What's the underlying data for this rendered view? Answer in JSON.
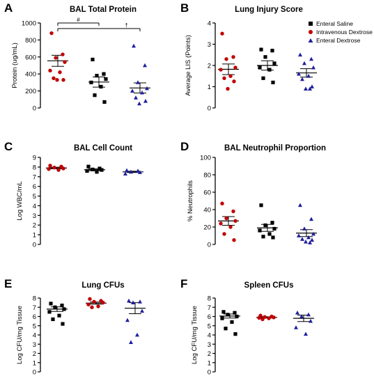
{
  "colors": {
    "enteral_saline": "#000000",
    "intravenous_dextrose": "#c00000",
    "enteral_dextrose": "#1f1f9e"
  },
  "legend": {
    "placement": "top-right of panel B",
    "entries": [
      {
        "label": "Enteral Saline",
        "marker": "square",
        "color": "#000000"
      },
      {
        "label": "Intravenous Dextrose",
        "marker": "circle",
        "color": "#c00000"
      },
      {
        "label": "Enteral Dextrose",
        "marker": "triangle",
        "color": "#1f1f9e"
      }
    ]
  },
  "chart_data": [
    {
      "panel": "A",
      "type": "scatter",
      "title": "BAL Total  Protein",
      "ylabel": "Protein (ug/mL)",
      "ylim": [
        0,
        1000
      ],
      "yticks": [
        "0",
        "200",
        "400",
        "600",
        "800",
        "1000"
      ],
      "annotations": [
        "#",
        "†"
      ],
      "series": [
        {
          "group": "Intravenous Dextrose",
          "marker": "circle",
          "color": "#c00000",
          "mean": 555,
          "sem": 65,
          "values": [
            880,
            630,
            590,
            540,
            440,
            420,
            350,
            330,
            330
          ]
        },
        {
          "group": "Enteral Saline",
          "marker": "square",
          "color": "#000000",
          "mean": 305,
          "sem": 60,
          "values": [
            570,
            400,
            380,
            340,
            300,
            250,
            150,
            70
          ]
        },
        {
          "group": "Enteral Dextrose",
          "marker": "triangle",
          "color": "#1f1f9e",
          "mean": 235,
          "sem": 60,
          "values": [
            730,
            500,
            300,
            230,
            200,
            180,
            120,
            80,
            50
          ]
        }
      ]
    },
    {
      "panel": "B",
      "type": "scatter",
      "title": "Lung Injury Score",
      "ylabel": "Average LIS (Points)",
      "ylim": [
        0,
        4
      ],
      "yticks": [
        "0",
        "1",
        "2",
        "3",
        "4"
      ],
      "series": [
        {
          "group": "Intravenous Dextrose",
          "marker": "circle",
          "color": "#c00000",
          "mean": 1.82,
          "sem": 0.25,
          "values": [
            3.5,
            2.4,
            2.3,
            1.9,
            1.8,
            1.5,
            1.4,
            1.25,
            0.9
          ]
        },
        {
          "group": "Enteral Saline",
          "marker": "square",
          "color": "#000000",
          "mean": 2.0,
          "sem": 0.22,
          "values": [
            2.75,
            2.7,
            2.4,
            2.1,
            1.9,
            1.8,
            1.4,
            1.2
          ]
        },
        {
          "group": "Enteral Dextrose",
          "marker": "triangle",
          "color": "#1f1f9e",
          "mean": 1.65,
          "sem": 0.2,
          "values": [
            2.5,
            2.3,
            2.1,
            1.9,
            1.6,
            1.5,
            1.35,
            1.0,
            0.9,
            0.9
          ]
        }
      ]
    },
    {
      "panel": "C",
      "type": "scatter",
      "title": "BAL Cell Count",
      "ylabel": "Log WBC/mL",
      "ylim": [
        0,
        9
      ],
      "yticks": [
        "0",
        "1",
        "2",
        "3",
        "4",
        "5",
        "6",
        "7",
        "8",
        "9"
      ],
      "series": [
        {
          "group": "Intravenous Dextrose",
          "marker": "circle",
          "color": "#c00000",
          "mean": 7.9,
          "sem": 0.08,
          "values": [
            8.15,
            8.05,
            7.95,
            7.85,
            7.8,
            7.7
          ]
        },
        {
          "group": "Enteral Saline",
          "marker": "square",
          "color": "#000000",
          "mean": 7.72,
          "sem": 0.1,
          "values": [
            8.05,
            7.85,
            7.75,
            7.7,
            7.6,
            7.5
          ]
        },
        {
          "group": "Enteral Dextrose",
          "marker": "triangle",
          "color": "#1f1f9e",
          "mean": 7.5,
          "sem": 0.07,
          "values": [
            7.65,
            7.6,
            7.5,
            7.45,
            7.3
          ]
        }
      ]
    },
    {
      "panel": "D",
      "type": "scatter",
      "title": "BAL Neutrophil Proportion",
      "ylabel": "% Neutrophils",
      "ylim": [
        0,
        100
      ],
      "yticks": [
        "0",
        "20",
        "40",
        "60",
        "80",
        "100"
      ],
      "series": [
        {
          "group": "Intravenous Dextrose",
          "marker": "circle",
          "color": "#c00000",
          "mean": 27,
          "sem": 5,
          "values": [
            47,
            38,
            30,
            27,
            24,
            20,
            12,
            5
          ]
        },
        {
          "group": "Enteral Saline",
          "marker": "square",
          "color": "#000000",
          "mean": 19,
          "sem": 4,
          "values": [
            45,
            25,
            22,
            18,
            16,
            12,
            9,
            8
          ]
        },
        {
          "group": "Enteral Dextrose",
          "marker": "triangle",
          "color": "#1f1f9e",
          "mean": 13,
          "sem": 4,
          "values": [
            45,
            29,
            18,
            12,
            10,
            8,
            6,
            5,
            3,
            2
          ]
        }
      ]
    },
    {
      "panel": "E",
      "type": "scatter",
      "title": "Lung CFUs",
      "ylabel": "Log CFU/mg Tissue",
      "ylim": [
        0,
        8
      ],
      "yticks": [
        "0",
        "1",
        "2",
        "3",
        "4",
        "5",
        "6",
        "7",
        "8"
      ],
      "series": [
        {
          "group": "Enteral Saline",
          "marker": "square",
          "color": "#000000",
          "mean": 6.8,
          "sem": 0.25,
          "values": [
            7.4,
            7.2,
            7.0,
            6.8,
            6.5,
            6.1,
            5.7,
            5.2
          ]
        },
        {
          "group": "Intravenous Dextrose",
          "marker": "circle",
          "color": "#c00000",
          "mean": 7.45,
          "sem": 0.12,
          "values": [
            7.9,
            7.7,
            7.6,
            7.5,
            7.3,
            7.1,
            7.0
          ]
        },
        {
          "group": "Enteral Dextrose",
          "marker": "triangle",
          "color": "#1f1f9e",
          "mean": 6.9,
          "sem": 0.6,
          "values": [
            7.7,
            7.6,
            7.5,
            6.6,
            5.6,
            4.0,
            3.2
          ]
        }
      ]
    },
    {
      "panel": "F",
      "type": "scatter",
      "title": "Spleen CFUs",
      "ylabel": "Log CFU/mg Tissue",
      "ylim": [
        0,
        8
      ],
      "yticks": [
        "0",
        "1",
        "2",
        "3",
        "4",
        "5",
        "6",
        "7",
        "8"
      ],
      "series": [
        {
          "group": "Enteral Saline",
          "marker": "square",
          "color": "#000000",
          "mean": 6.05,
          "sem": 0.22,
          "values": [
            6.5,
            6.4,
            6.2,
            6.0,
            5.8,
            5.4,
            4.7,
            4.1
          ]
        },
        {
          "group": "Intravenous Dextrose",
          "marker": "circle",
          "color": "#c00000",
          "mean": 5.9,
          "sem": 0.07,
          "values": [
            6.1,
            6.0,
            5.95,
            5.9,
            5.85,
            5.8,
            5.7
          ]
        },
        {
          "group": "Enteral Dextrose",
          "marker": "triangle",
          "color": "#1f1f9e",
          "mean": 5.8,
          "sem": 0.35,
          "values": [
            6.4,
            6.2,
            6.0,
            5.5,
            4.8,
            4.1
          ]
        }
      ]
    }
  ]
}
